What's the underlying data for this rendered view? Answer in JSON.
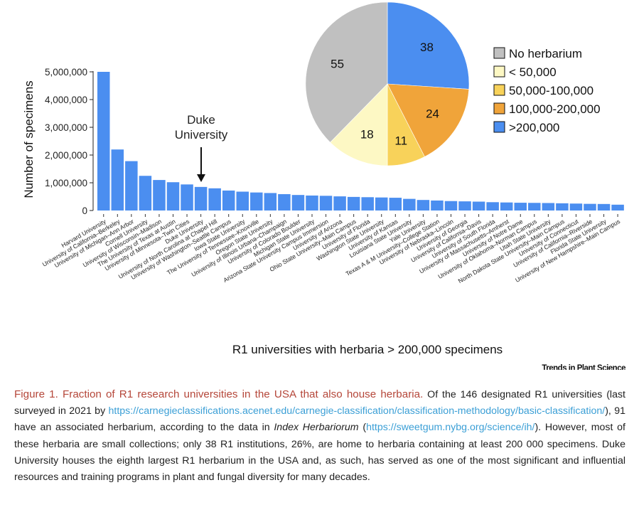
{
  "chart_data": [
    {
      "type": "bar",
      "xlabel": "R1 universities with herbaria > 200,000 specimens",
      "ylabel": "Number of specimens",
      "ylim": [
        0,
        5000000
      ],
      "yticks": [
        0,
        1000000,
        2000000,
        3000000,
        4000000,
        5000000
      ],
      "ytick_labels": [
        "0",
        "1,000,000",
        "2,000,000",
        "3,000,000",
        "4,000,000",
        "5,000,000"
      ],
      "bar_color": "#4b8ef0",
      "grid": false,
      "categories": [
        "Harvard University",
        "University of California–Berkeley",
        "University of Michigan–Ann Arbor",
        "Cornell University",
        "University of Wisconsin–Madison",
        "The University of Texas at Austin",
        "University of Minnesota–Twin Cities",
        "Duke University",
        "University of North Carolina at Chapel Hill",
        "University of Washington–Seattle Campus",
        "Iowa State University",
        "The University of Tennessee–Knoxville",
        "Oregon State University",
        "University of Illinois Urbana–Champaign",
        "University of Colorado Boulder",
        "Michigan State University",
        "Arizona State University Campus Immersion",
        "University of Arizona",
        "Ohio State University–Main Campus",
        "University of Florida",
        "Washington State University",
        "University of Kansas",
        "Louisiana State University",
        "Yale University",
        "Texas A & M University–College Station",
        "University of Nebraska–Lincoln",
        "University of Georgia",
        "University of California–Davis",
        "University of South Florida",
        "University of Massachusetts–Amherst",
        "University of Notre Dame",
        "University of Oklahoma–Norman Campus",
        "Utah State University",
        "North Dakota State University–Main Campus",
        "University of Connecticut",
        "University of California–Riverside",
        "Florida State University",
        "University of New Hampshire–Main Campus"
      ],
      "values": [
        5000000,
        2200000,
        1780000,
        1250000,
        1100000,
        1020000,
        940000,
        850000,
        800000,
        720000,
        680000,
        650000,
        630000,
        590000,
        560000,
        540000,
        530000,
        510000,
        490000,
        480000,
        470000,
        460000,
        420000,
        380000,
        360000,
        340000,
        330000,
        320000,
        300000,
        290000,
        280000,
        275000,
        270000,
        260000,
        250000,
        240000,
        235000,
        210000
      ],
      "annotation": {
        "text": "Duke University",
        "line1": "Duke",
        "line2": "University",
        "target": "Duke University"
      }
    },
    {
      "type": "pie",
      "slices": [
        {
          "label": "No herbarium",
          "value": 55,
          "color": "#c0c0c0"
        },
        {
          "label": "< 50,000",
          "value": 18,
          "color": "#fdf8c4"
        },
        {
          "label": "50,000-100,000",
          "value": 11,
          "color": "#f8d25a"
        },
        {
          "label": "100,000-200,000",
          "value": 24,
          "color": "#f0a43a"
        },
        {
          "label": ">200,000",
          "value": 38,
          "color": "#4b8ef0"
        }
      ],
      "legend_placement": "right"
    }
  ],
  "branding": "Trends in Plant Science",
  "caption": {
    "lead": "Figure 1. Fraction of R1 research universities in the USA that also house herbaria.",
    "p1": " Of the 146 designated R1 universities (last surveyed in 2021 by ",
    "link1": "https://carnegieclassifications.acenet.edu/carnegie-classification/classification-methodology/basic-classification/",
    "p2": "), 91 have an associated herbarium, according to the data in ",
    "italic": "Index Herbariorum",
    "p3": " (",
    "link2": "https://sweetgum.nybg.org/science/ih/",
    "p4": "). However, most of these herbaria are small collections; only 38 R1 institutions, 26%, are home to herbaria containing at least 200 000 specimens. Duke University houses the eighth largest R1 herbarium in the USA and, as such, has served as one of the most significant and influential resources and training programs in plant and fungal diversity for many decades."
  }
}
